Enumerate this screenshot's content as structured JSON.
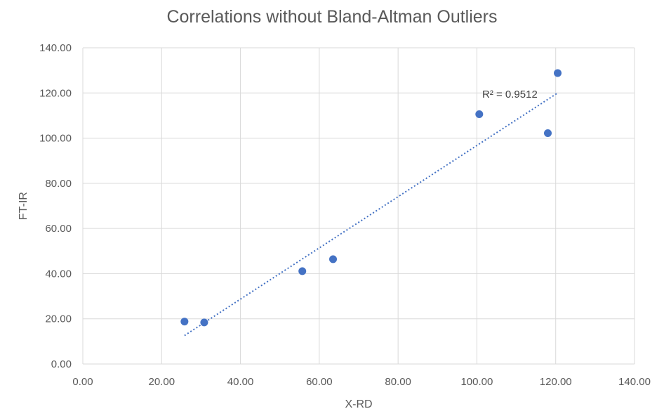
{
  "chart_data": {
    "type": "scatter",
    "title": "Correlations without Bland-Altman Outliers",
    "xlabel": "X-RD",
    "ylabel": "FT-IR",
    "xlim": [
      0,
      140
    ],
    "ylim": [
      0,
      140
    ],
    "x_ticks": [
      "0.00",
      "20.00",
      "40.00",
      "60.00",
      "80.00",
      "100.00",
      "120.00",
      "140.00"
    ],
    "y_ticks": [
      "0.00",
      "20.00",
      "40.00",
      "60.00",
      "80.00",
      "100.00",
      "120.00",
      "140.00"
    ],
    "grid": true,
    "series": [
      {
        "color": "#4472c4",
        "points": [
          {
            "x": 25.8,
            "y": 18.8
          },
          {
            "x": 30.8,
            "y": 18.4
          },
          {
            "x": 55.7,
            "y": 41.1
          },
          {
            "x": 63.5,
            "y": 46.4
          },
          {
            "x": 100.6,
            "y": 110.6
          },
          {
            "x": 118.0,
            "y": 102.2
          },
          {
            "x": 120.5,
            "y": 128.8
          }
        ]
      }
    ],
    "trendline": {
      "type": "linear",
      "style": "dotted",
      "color": "#4472c4",
      "x_start": 25.8,
      "y_start": 12.6,
      "x_end": 120.5,
      "y_end": 120.0,
      "label": "R² = 0.9512"
    }
  }
}
